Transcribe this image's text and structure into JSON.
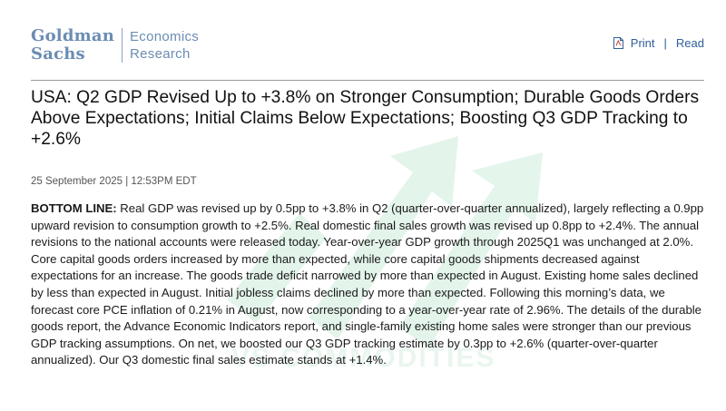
{
  "logo": {
    "line1": "Goldman",
    "line2": "Sachs",
    "sub1": "Economics",
    "sub2": "Research"
  },
  "header_links": {
    "print": "Print",
    "separator": "|",
    "read": "Read"
  },
  "title": "USA: Q2 GDP Revised Up to +3.8% on Stronger Consumption; Durable Goods Orders Above Expectations; Initial Claims Below Expectations; Boosting Q3 GDP Tracking to +2.6%",
  "dateline": "25 September 2025 | 12:53PM EDT",
  "body": {
    "lead": "BOTTOM LINE:",
    "text": " Real GDP was revised up by 0.5pp to +3.8% in Q2 (quarter-over-quarter annualized), largely reflecting a 0.9pp upward revision to consumption growth to +2.5%. Real domestic final sales growth was revised up 0.8pp to +2.4%. The annual revisions to the national accounts were released today. Year-over-year GDP growth through 2025Q1 was unchanged at 2.0%. Core capital goods orders increased by more than expected, while core capital goods shipments decreased against expectations for an increase. The goods trade deficit narrowed by more than expected in August. Existing home sales declined by less than expected in August. Initial jobless claims declined by more than expected. Following this morning’s data, we forecast core PCE inflation of 0.21% in August, now corresponding to a year-over-year rate of 2.96%. The details of the durable goods report, the Advance Economic Indicators report, and single-family existing home sales were stronger than our previous GDP tracking assumptions. On net, we boosted our Q3 GDP tracking estimate by 0.3pp to +2.6% (quarter-over-quarter annualized). Our Q3 domestic final sales estimate stands at +1.4%."
  },
  "watermark": {
    "text": "VS COMMODITIES",
    "color": "#2fae66"
  },
  "colors": {
    "brand": "#6b8cb3",
    "link": "#2f5f9a"
  }
}
